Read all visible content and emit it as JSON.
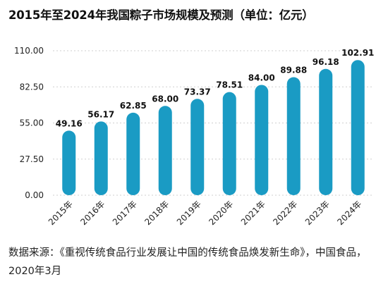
{
  "chart_data": {
    "type": "bar",
    "title": "2015年至2024年我国粽子市场规模及预测（单位：亿元）",
    "categories": [
      "2015年",
      "2016年",
      "2017年",
      "2018年",
      "2019年",
      "2020年",
      "2021年",
      "2022年",
      "2023年",
      "2024年"
    ],
    "values": [
      49.16,
      56.17,
      62.85,
      68.0,
      73.37,
      78.51,
      84.0,
      89.88,
      96.18,
      102.91
    ],
    "value_labels": [
      "49.16",
      "56.17",
      "62.85",
      "68.00",
      "73.37",
      "78.51",
      "84.00",
      "89.88",
      "96.18",
      "102.91"
    ],
    "yticks": [
      "0.00",
      "27.50",
      "55.00",
      "82.50",
      "110.00"
    ],
    "ylim": [
      0,
      110
    ],
    "grid": true,
    "legend": "none",
    "bar_color": "#1a9bc4",
    "xlabel": "",
    "ylabel": ""
  },
  "source": "数据来源：《重视传统食品行业发展让中国的传统食品焕发新生命》，中国食品，2020年3月"
}
